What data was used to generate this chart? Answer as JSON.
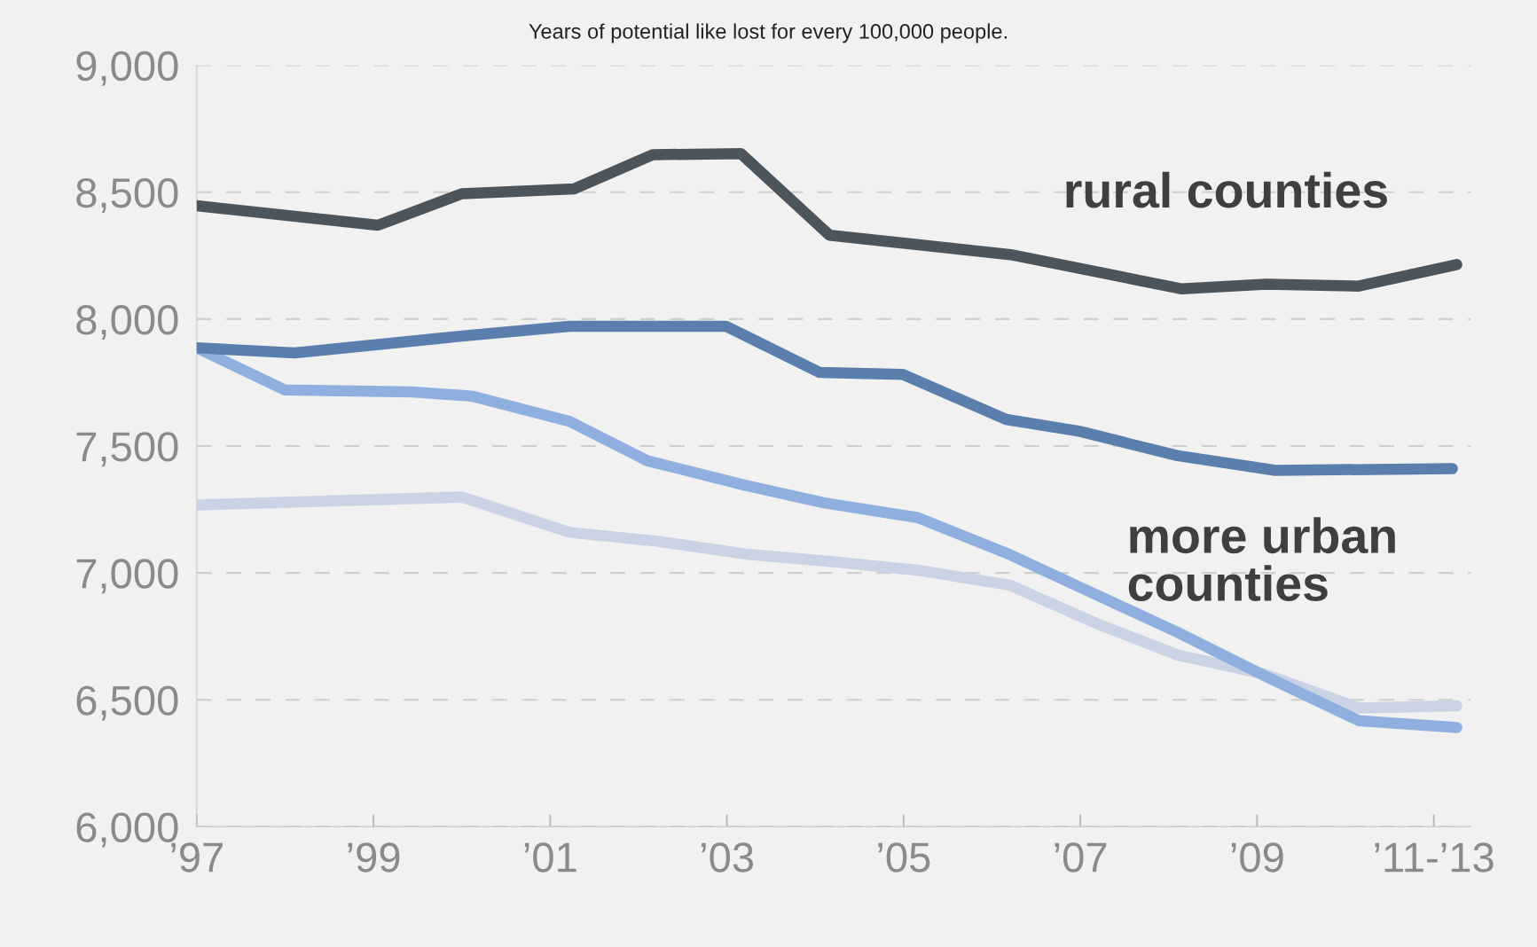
{
  "chart_data": {
    "type": "line",
    "title": "Years of potential like lost for every 100,000 people.",
    "annotations": [
      "rural counties",
      "more urban counties"
    ],
    "series": [
      {
        "color": "#4d555c",
        "x": [
          1997,
          1999.05,
          2000.0,
          2001.27,
          2002.16,
          2003.16,
          2004.16,
          2006.21,
          2008.15,
          2009.1,
          2010.15,
          2011.26
        ],
        "values": [
          8447,
          8370,
          8494,
          8513,
          8648,
          8652,
          8331,
          8254,
          8119,
          8138,
          8130,
          8215
        ]
      },
      {
        "color": "#5b7fad",
        "x": [
          1997,
          1998.11,
          2000.11,
          2001.22,
          2002.99,
          2004.05,
          2004.99,
          2006.16,
          2006.99,
          2008.1,
          2009.21,
          2011.21
        ],
        "values": [
          7887,
          7867,
          7937,
          7972,
          7972,
          7790,
          7782,
          7605,
          7558,
          7462,
          7404,
          7411
        ]
      },
      {
        "color": "#8fb0df",
        "x": [
          1997,
          1998.0,
          1999.44,
          2000.11,
          2001.22,
          2002.1,
          2003.2,
          2004.1,
          2005.16,
          2006.21,
          2007.21,
          2008.1,
          2009.1,
          2010.15,
          2011.26
        ],
        "values": [
          7887,
          7721,
          7713,
          7697,
          7597,
          7442,
          7346,
          7276,
          7218,
          7071,
          6909,
          6766,
          6592,
          6418,
          6391
        ]
      },
      {
        "color": "#c9d3e3",
        "x": [
          1997,
          2000.0,
          2001.22,
          2002.21,
          2003.2,
          2004.2,
          2005.2,
          2006.21,
          2007.21,
          2008.1,
          2009.1,
          2010.15,
          2011.26
        ],
        "values": [
          7268,
          7299,
          7160,
          7125,
          7075,
          7044,
          7009,
          6951,
          6797,
          6677,
          6600,
          6468,
          6476
        ]
      }
    ],
    "xlim": [
      1997,
      2011.42
    ],
    "xticks": [
      {
        "value": 1997,
        "label": "’97"
      },
      {
        "value": 1999,
        "label": "’99"
      },
      {
        "value": 2001,
        "label": "’01"
      },
      {
        "value": 2003,
        "label": "’03"
      },
      {
        "value": 2005,
        "label": "’05"
      },
      {
        "value": 2007,
        "label": "’07"
      },
      {
        "value": 2009,
        "label": "’09"
      },
      {
        "value": 2011,
        "label": "’11-’13"
      }
    ],
    "ylim": [
      6000,
      9000
    ],
    "yticks": [
      {
        "value": 6000,
        "label": "6,000"
      },
      {
        "value": 6500,
        "label": "6,500"
      },
      {
        "value": 7000,
        "label": "7,000"
      },
      {
        "value": 7500,
        "label": "7,500"
      },
      {
        "value": 8000,
        "label": "8,000"
      },
      {
        "value": 8500,
        "label": "8,500"
      },
      {
        "value": 9000,
        "label": "9,000"
      }
    ],
    "grid": "y",
    "line_style": "solid"
  }
}
